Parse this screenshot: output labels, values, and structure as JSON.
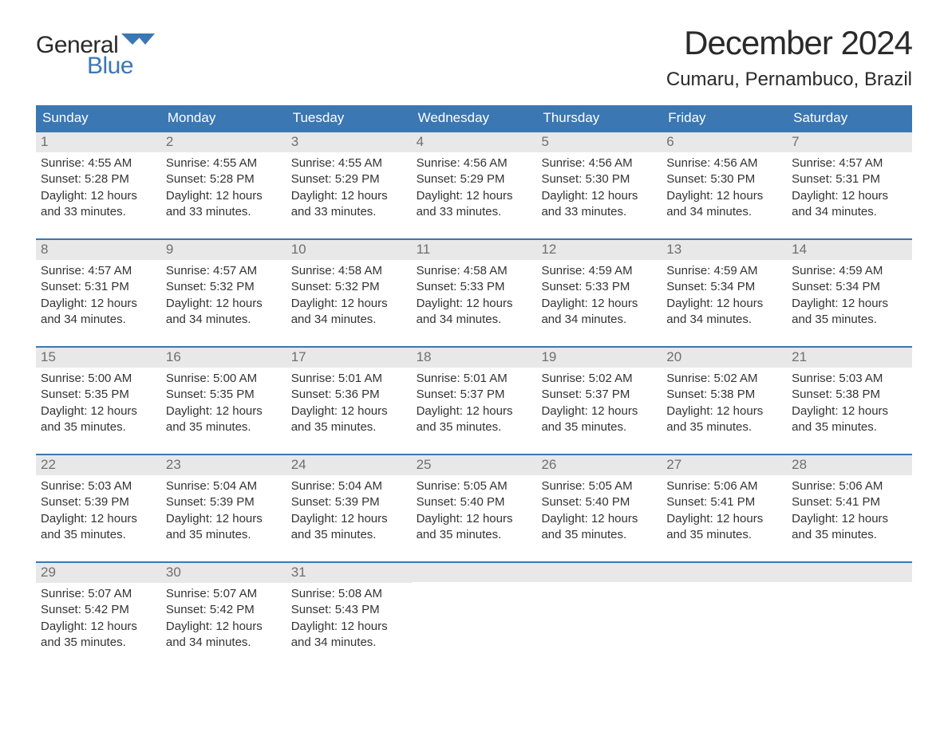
{
  "logo": {
    "word1": "General",
    "word2": "Blue",
    "flag_color": "#3a77b3"
  },
  "title": "December 2024",
  "location": "Cumaru, Pernambuco, Brazil",
  "colors": {
    "header_bg": "#3a77b3",
    "header_text": "#ffffff",
    "daynum_bg": "#e8e8e8",
    "daynum_text": "#6f6f6f",
    "body_text": "#333333",
    "week_border": "#3a77b3",
    "page_bg": "#ffffff"
  },
  "typography": {
    "title_fontsize": 42,
    "location_fontsize": 24,
    "dayhead_fontsize": 17,
    "daynum_fontsize": 17,
    "daytext_fontsize": 15,
    "font_family": "Arial"
  },
  "day_headers": [
    "Sunday",
    "Monday",
    "Tuesday",
    "Wednesday",
    "Thursday",
    "Friday",
    "Saturday"
  ],
  "weeks": [
    [
      {
        "n": "1",
        "sunrise": "Sunrise: 4:55 AM",
        "sunset": "Sunset: 5:28 PM",
        "dl1": "Daylight: 12 hours",
        "dl2": "and 33 minutes."
      },
      {
        "n": "2",
        "sunrise": "Sunrise: 4:55 AM",
        "sunset": "Sunset: 5:28 PM",
        "dl1": "Daylight: 12 hours",
        "dl2": "and 33 minutes."
      },
      {
        "n": "3",
        "sunrise": "Sunrise: 4:55 AM",
        "sunset": "Sunset: 5:29 PM",
        "dl1": "Daylight: 12 hours",
        "dl2": "and 33 minutes."
      },
      {
        "n": "4",
        "sunrise": "Sunrise: 4:56 AM",
        "sunset": "Sunset: 5:29 PM",
        "dl1": "Daylight: 12 hours",
        "dl2": "and 33 minutes."
      },
      {
        "n": "5",
        "sunrise": "Sunrise: 4:56 AM",
        "sunset": "Sunset: 5:30 PM",
        "dl1": "Daylight: 12 hours",
        "dl2": "and 33 minutes."
      },
      {
        "n": "6",
        "sunrise": "Sunrise: 4:56 AM",
        "sunset": "Sunset: 5:30 PM",
        "dl1": "Daylight: 12 hours",
        "dl2": "and 34 minutes."
      },
      {
        "n": "7",
        "sunrise": "Sunrise: 4:57 AM",
        "sunset": "Sunset: 5:31 PM",
        "dl1": "Daylight: 12 hours",
        "dl2": "and 34 minutes."
      }
    ],
    [
      {
        "n": "8",
        "sunrise": "Sunrise: 4:57 AM",
        "sunset": "Sunset: 5:31 PM",
        "dl1": "Daylight: 12 hours",
        "dl2": "and 34 minutes."
      },
      {
        "n": "9",
        "sunrise": "Sunrise: 4:57 AM",
        "sunset": "Sunset: 5:32 PM",
        "dl1": "Daylight: 12 hours",
        "dl2": "and 34 minutes."
      },
      {
        "n": "10",
        "sunrise": "Sunrise: 4:58 AM",
        "sunset": "Sunset: 5:32 PM",
        "dl1": "Daylight: 12 hours",
        "dl2": "and 34 minutes."
      },
      {
        "n": "11",
        "sunrise": "Sunrise: 4:58 AM",
        "sunset": "Sunset: 5:33 PM",
        "dl1": "Daylight: 12 hours",
        "dl2": "and 34 minutes."
      },
      {
        "n": "12",
        "sunrise": "Sunrise: 4:59 AM",
        "sunset": "Sunset: 5:33 PM",
        "dl1": "Daylight: 12 hours",
        "dl2": "and 34 minutes."
      },
      {
        "n": "13",
        "sunrise": "Sunrise: 4:59 AM",
        "sunset": "Sunset: 5:34 PM",
        "dl1": "Daylight: 12 hours",
        "dl2": "and 34 minutes."
      },
      {
        "n": "14",
        "sunrise": "Sunrise: 4:59 AM",
        "sunset": "Sunset: 5:34 PM",
        "dl1": "Daylight: 12 hours",
        "dl2": "and 35 minutes."
      }
    ],
    [
      {
        "n": "15",
        "sunrise": "Sunrise: 5:00 AM",
        "sunset": "Sunset: 5:35 PM",
        "dl1": "Daylight: 12 hours",
        "dl2": "and 35 minutes."
      },
      {
        "n": "16",
        "sunrise": "Sunrise: 5:00 AM",
        "sunset": "Sunset: 5:35 PM",
        "dl1": "Daylight: 12 hours",
        "dl2": "and 35 minutes."
      },
      {
        "n": "17",
        "sunrise": "Sunrise: 5:01 AM",
        "sunset": "Sunset: 5:36 PM",
        "dl1": "Daylight: 12 hours",
        "dl2": "and 35 minutes."
      },
      {
        "n": "18",
        "sunrise": "Sunrise: 5:01 AM",
        "sunset": "Sunset: 5:37 PM",
        "dl1": "Daylight: 12 hours",
        "dl2": "and 35 minutes."
      },
      {
        "n": "19",
        "sunrise": "Sunrise: 5:02 AM",
        "sunset": "Sunset: 5:37 PM",
        "dl1": "Daylight: 12 hours",
        "dl2": "and 35 minutes."
      },
      {
        "n": "20",
        "sunrise": "Sunrise: 5:02 AM",
        "sunset": "Sunset: 5:38 PM",
        "dl1": "Daylight: 12 hours",
        "dl2": "and 35 minutes."
      },
      {
        "n": "21",
        "sunrise": "Sunrise: 5:03 AM",
        "sunset": "Sunset: 5:38 PM",
        "dl1": "Daylight: 12 hours",
        "dl2": "and 35 minutes."
      }
    ],
    [
      {
        "n": "22",
        "sunrise": "Sunrise: 5:03 AM",
        "sunset": "Sunset: 5:39 PM",
        "dl1": "Daylight: 12 hours",
        "dl2": "and 35 minutes."
      },
      {
        "n": "23",
        "sunrise": "Sunrise: 5:04 AM",
        "sunset": "Sunset: 5:39 PM",
        "dl1": "Daylight: 12 hours",
        "dl2": "and 35 minutes."
      },
      {
        "n": "24",
        "sunrise": "Sunrise: 5:04 AM",
        "sunset": "Sunset: 5:39 PM",
        "dl1": "Daylight: 12 hours",
        "dl2": "and 35 minutes."
      },
      {
        "n": "25",
        "sunrise": "Sunrise: 5:05 AM",
        "sunset": "Sunset: 5:40 PM",
        "dl1": "Daylight: 12 hours",
        "dl2": "and 35 minutes."
      },
      {
        "n": "26",
        "sunrise": "Sunrise: 5:05 AM",
        "sunset": "Sunset: 5:40 PM",
        "dl1": "Daylight: 12 hours",
        "dl2": "and 35 minutes."
      },
      {
        "n": "27",
        "sunrise": "Sunrise: 5:06 AM",
        "sunset": "Sunset: 5:41 PM",
        "dl1": "Daylight: 12 hours",
        "dl2": "and 35 minutes."
      },
      {
        "n": "28",
        "sunrise": "Sunrise: 5:06 AM",
        "sunset": "Sunset: 5:41 PM",
        "dl1": "Daylight: 12 hours",
        "dl2": "and 35 minutes."
      }
    ],
    [
      {
        "n": "29",
        "sunrise": "Sunrise: 5:07 AM",
        "sunset": "Sunset: 5:42 PM",
        "dl1": "Daylight: 12 hours",
        "dl2": "and 35 minutes."
      },
      {
        "n": "30",
        "sunrise": "Sunrise: 5:07 AM",
        "sunset": "Sunset: 5:42 PM",
        "dl1": "Daylight: 12 hours",
        "dl2": "and 34 minutes."
      },
      {
        "n": "31",
        "sunrise": "Sunrise: 5:08 AM",
        "sunset": "Sunset: 5:43 PM",
        "dl1": "Daylight: 12 hours",
        "dl2": "and 34 minutes."
      },
      {
        "empty": true
      },
      {
        "empty": true
      },
      {
        "empty": true
      },
      {
        "empty": true
      }
    ]
  ]
}
